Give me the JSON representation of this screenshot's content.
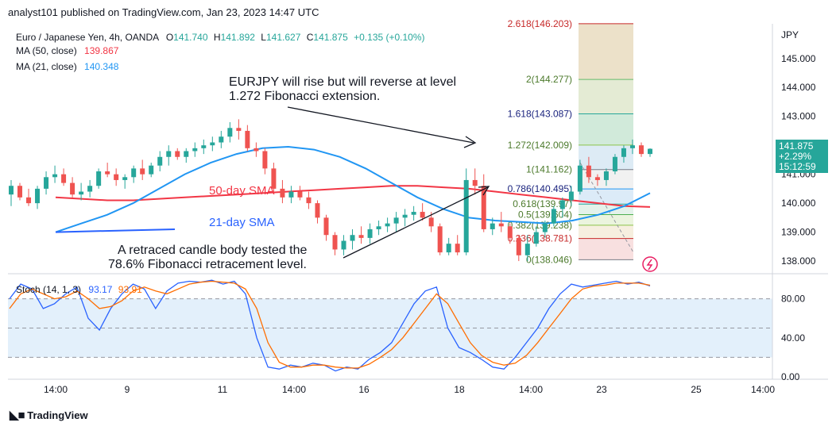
{
  "header": {
    "text": "analyst101 published on TradingView.com, Jan 23, 2023 14:47 UTC"
  },
  "legend": {
    "symbol": "Euro / Japanese Yen, 4h, OANDA",
    "o_label": "O",
    "o": "141.740",
    "h_label": "H",
    "h": "141.892",
    "l_label": "L",
    "l": "141.627",
    "c_label": "C",
    "c": "141.875",
    "change": "+0.135 (+0.10%)",
    "ma50_label": "MA (50, close)",
    "ma50": "139.867",
    "ma21_label": "MA (21, close)",
    "ma21": "140.348"
  },
  "stoch_legend": {
    "label": "Stoch (14, 1, 3)",
    "k": "93.17",
    "d": "93.91"
  },
  "price_badge": {
    "price": "141.875",
    "change": "+2.29%",
    "timer": "15:12:59"
  },
  "currency": "JPY",
  "footer": {
    "brand": "TradingView"
  },
  "annotations": {
    "top": [
      "EURJPY  will rise but will reverse at level",
      "1.272 Fibonacci extension."
    ],
    "bottom": [
      "A retraced candle body tested the",
      "78.6% Fibonacci retracement level."
    ],
    "sma50": "50-day SMA",
    "sma21": "21-day SMA"
  },
  "colors": {
    "up": "#26a69a",
    "down": "#ef5350",
    "ma50": "#f23645",
    "ma21": "#2196f3",
    "stoch_k": "#2962ff",
    "stoch_d": "#ff6d00",
    "stoch_band": "#e3f0fb"
  },
  "chart_data": {
    "type": "candlestick",
    "y_range": [
      137.7,
      146.2
    ],
    "y_ticks": [
      "145.000",
      "144.000",
      "143.000",
      "142.000",
      "141.000",
      "140.000",
      "139.000",
      "138.000"
    ],
    "x_ticks": [
      "14:00",
      "9",
      "11",
      "14:00",
      "16",
      "18",
      "14:00",
      "23",
      "25",
      "14:00"
    ],
    "candles": [
      [
        140.3,
        140.8,
        139.9,
        140.6
      ],
      [
        140.6,
        140.7,
        140.1,
        140.2
      ],
      [
        140.2,
        140.5,
        139.9,
        140.0
      ],
      [
        140.0,
        140.6,
        139.8,
        140.5
      ],
      [
        140.5,
        141.1,
        140.3,
        140.9
      ],
      [
        140.9,
        141.3,
        140.7,
        141.0
      ],
      [
        141.0,
        141.2,
        140.6,
        140.7
      ],
      [
        140.7,
        140.9,
        140.2,
        140.3
      ],
      [
        140.3,
        140.7,
        140.1,
        140.4
      ],
      [
        140.4,
        140.8,
        140.2,
        140.6
      ],
      [
        140.6,
        141.2,
        140.5,
        141.1
      ],
      [
        141.1,
        141.4,
        140.9,
        141.0
      ],
      [
        141.0,
        141.2,
        140.6,
        140.8
      ],
      [
        140.8,
        141.0,
        140.5,
        140.9
      ],
      [
        140.9,
        141.3,
        140.7,
        141.2
      ],
      [
        141.2,
        141.5,
        140.8,
        141.0
      ],
      [
        141.0,
        141.4,
        140.9,
        141.3
      ],
      [
        141.3,
        141.8,
        141.1,
        141.6
      ],
      [
        141.6,
        142.0,
        141.3,
        141.8
      ],
      [
        141.8,
        141.9,
        141.5,
        141.6
      ],
      [
        141.6,
        141.9,
        141.4,
        141.8
      ],
      [
        141.8,
        142.1,
        141.6,
        141.9
      ],
      [
        141.9,
        142.2,
        141.7,
        142.0
      ],
      [
        142.0,
        142.3,
        141.8,
        142.1
      ],
      [
        142.1,
        142.5,
        141.9,
        142.3
      ],
      [
        142.3,
        142.8,
        142.1,
        142.6
      ],
      [
        142.6,
        142.9,
        142.2,
        142.5
      ],
      [
        142.5,
        142.7,
        141.8,
        141.9
      ],
      [
        141.9,
        142.1,
        141.6,
        141.8
      ],
      [
        141.8,
        141.9,
        141.0,
        141.2
      ],
      [
        141.2,
        141.4,
        140.4,
        140.5
      ],
      [
        140.5,
        140.8,
        140.0,
        140.2
      ],
      [
        140.2,
        140.6,
        140.0,
        140.4
      ],
      [
        140.4,
        140.6,
        140.1,
        140.2
      ],
      [
        140.2,
        140.4,
        139.8,
        140.0
      ],
      [
        140.0,
        140.1,
        139.3,
        139.5
      ],
      [
        139.5,
        139.6,
        138.7,
        138.9
      ],
      [
        138.9,
        139.0,
        138.2,
        138.4
      ],
      [
        138.4,
        138.9,
        138.2,
        138.7
      ],
      [
        138.7,
        139.1,
        138.4,
        138.9
      ],
      [
        138.9,
        139.2,
        138.6,
        138.8
      ],
      [
        138.8,
        139.3,
        138.6,
        139.1
      ],
      [
        139.1,
        139.4,
        138.9,
        139.2
      ],
      [
        139.2,
        139.5,
        139.0,
        139.3
      ],
      [
        139.3,
        139.7,
        139.0,
        139.5
      ],
      [
        139.5,
        139.8,
        139.2,
        139.6
      ],
      [
        139.6,
        139.9,
        139.4,
        139.7
      ],
      [
        139.7,
        140.0,
        139.4,
        139.5
      ],
      [
        139.5,
        139.7,
        139.0,
        139.2
      ],
      [
        139.2,
        139.3,
        138.2,
        138.3
      ],
      [
        138.3,
        138.8,
        138.2,
        138.6
      ],
      [
        138.6,
        138.9,
        138.2,
        138.3
      ],
      [
        138.3,
        141.2,
        138.2,
        140.8
      ],
      [
        140.8,
        141.2,
        140.3,
        140.6
      ],
      [
        140.6,
        141.0,
        139.0,
        139.1
      ],
      [
        139.1,
        139.5,
        138.9,
        139.3
      ],
      [
        139.3,
        139.7,
        139.0,
        139.2
      ],
      [
        139.2,
        139.3,
        138.6,
        138.8
      ],
      [
        138.8,
        138.9,
        138.0,
        138.2
      ],
      [
        138.2,
        138.9,
        138.0,
        138.6
      ],
      [
        138.6,
        139.2,
        138.5,
        139.0
      ],
      [
        139.0,
        139.4,
        138.8,
        139.3
      ],
      [
        139.3,
        139.9,
        139.2,
        139.8
      ],
      [
        139.8,
        140.2,
        139.5,
        140.1
      ],
      [
        140.1,
        140.6,
        139.9,
        140.4
      ],
      [
        140.4,
        141.5,
        140.3,
        141.3
      ],
      [
        141.3,
        141.6,
        140.7,
        140.9
      ],
      [
        140.9,
        141.0,
        140.6,
        140.8
      ],
      [
        140.8,
        141.2,
        140.6,
        141.1
      ],
      [
        141.1,
        141.7,
        141.0,
        141.6
      ],
      [
        141.6,
        142.0,
        141.4,
        141.9
      ],
      [
        141.9,
        142.2,
        141.7,
        142.0
      ],
      [
        142.0,
        142.1,
        141.6,
        141.7
      ],
      [
        141.7,
        141.9,
        141.6,
        141.88
      ]
    ],
    "ma50": [
      140.2,
      140.15,
      140.1,
      140.1,
      140.15,
      140.2,
      140.25,
      140.3,
      140.35,
      140.4,
      140.45,
      140.5,
      140.55,
      140.6,
      140.6,
      140.55,
      140.5,
      140.4,
      140.3,
      140.2,
      140.1,
      140.0,
      139.9,
      139.87
    ],
    "ma21": [
      139.0,
      139.3,
      139.6,
      140.0,
      140.5,
      141.0,
      141.4,
      141.7,
      141.9,
      141.95,
      141.85,
      141.6,
      141.2,
      140.7,
      140.2,
      139.8,
      139.5,
      139.4,
      139.35,
      139.3,
      139.4,
      139.6,
      139.9,
      140.35
    ],
    "fib_levels": [
      {
        "label": "2.618(146.203)",
        "value": 146.203
      },
      {
        "label": "2(144.277)",
        "value": 144.277
      },
      {
        "label": "1.618(143.087)",
        "value": 143.087
      },
      {
        "label": "1.272(142.009)",
        "value": 142.009
      },
      {
        "label": "1(141.162)",
        "value": 141.162
      },
      {
        "label": "0.786(140.495)",
        "value": 140.495
      },
      {
        "label": "0.618(139.97)",
        "value": 139.97
      },
      {
        "label": "0.5(139.604)",
        "value": 139.604
      },
      {
        "label": "0.382(139.238)",
        "value": 139.238
      },
      {
        "label": "0.236(138.781)",
        "value": 138.781
      },
      {
        "label": "0(138.046)",
        "value": 138.046
      }
    ],
    "stoch": {
      "range": [
        0,
        100
      ],
      "ticks": [
        "80.00",
        "40.00",
        "0.00"
      ],
      "bands": [
        80,
        20
      ],
      "k": [
        80,
        95,
        90,
        70,
        75,
        85,
        92,
        60,
        48,
        70,
        85,
        95,
        90,
        70,
        88,
        96,
        98,
        97,
        99,
        95,
        98,
        85,
        40,
        10,
        8,
        12,
        10,
        14,
        12,
        6,
        10,
        8,
        18,
        25,
        35,
        55,
        75,
        88,
        92,
        50,
        30,
        25,
        18,
        10,
        8,
        20,
        35,
        50,
        70,
        85,
        95,
        92,
        94,
        96,
        98,
        95,
        97,
        93.17
      ],
      "d": [
        70,
        85,
        90,
        85,
        80,
        82,
        88,
        80,
        70,
        72,
        78,
        88,
        92,
        88,
        85,
        90,
        95,
        97,
        98,
        97,
        96,
        90,
        70,
        35,
        15,
        10,
        10,
        12,
        12,
        10,
        9,
        9,
        13,
        20,
        28,
        40,
        55,
        70,
        85,
        75,
        55,
        35,
        22,
        15,
        12,
        14,
        22,
        35,
        50,
        65,
        80,
        90,
        93,
        94,
        96,
        96,
        96,
        93.91
      ]
    }
  }
}
